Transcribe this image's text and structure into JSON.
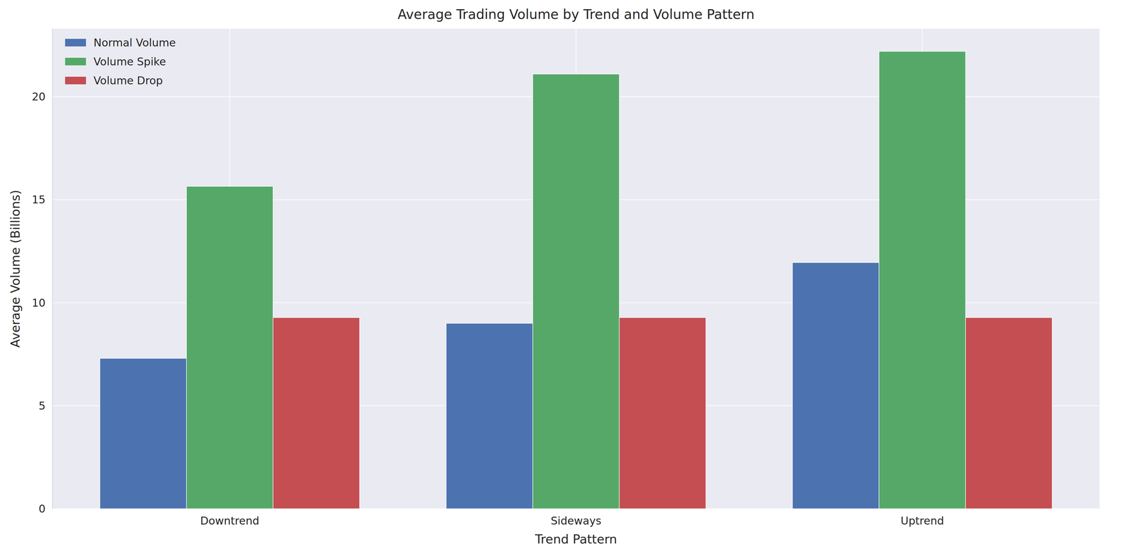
{
  "chart_data": {
    "type": "bar",
    "title": "Average Trading Volume by Trend and Volume Pattern",
    "x_label": "Trend Pattern",
    "y_label": "Average Volume (Billions)",
    "categories": [
      "Downtrend",
      "Sideways",
      "Uptrend"
    ],
    "series": [
      {
        "name": "Normal Volume",
        "color": "#4c72b0",
        "values": [
          7.3,
          9.0,
          11.95
        ]
      },
      {
        "name": "Volume Spike",
        "color": "#55a868",
        "values": [
          15.65,
          21.1,
          22.2
        ]
      },
      {
        "name": "Volume Drop",
        "color": "#c44e52",
        "values": [
          9.28,
          9.28,
          9.28
        ]
      }
    ],
    "ylim": [
      0,
      23.3
    ],
    "yticks": [
      0,
      5,
      10,
      15,
      20
    ],
    "grid": true,
    "legend": "upper left"
  }
}
